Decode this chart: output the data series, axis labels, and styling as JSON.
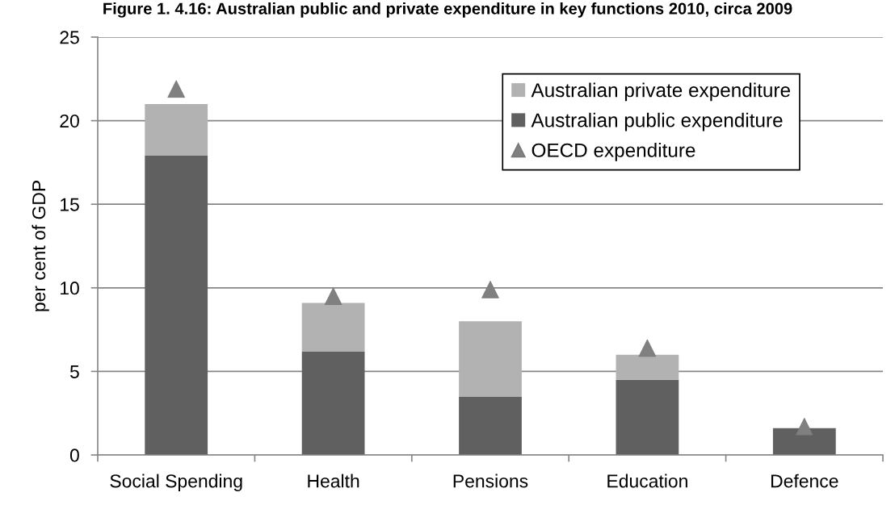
{
  "chart_data": {
    "type": "bar",
    "title": "Figure 1. 4.16: Australian public and private expenditure in key functions 2010, circa 2009",
    "ylabel": "per cent of GDP",
    "categories": [
      "Social Spending",
      "Health",
      "Pensions",
      "Education",
      "Defence"
    ],
    "stacked": true,
    "series": [
      {
        "name": "Australian public expenditure",
        "color": "#606060",
        "values": [
          17.9,
          6.2,
          3.5,
          4.5,
          1.6
        ]
      },
      {
        "name": "Australian private expenditure",
        "color": "#b2b2b2",
        "values": [
          3.1,
          2.9,
          4.5,
          1.5,
          null
        ]
      },
      {
        "name": "OECD expenditure",
        "type": "scatter",
        "color": "#808080",
        "marker": "triangle",
        "x": [
          "Social Spending",
          "Health",
          "Pensions",
          "Education",
          "Defence"
        ],
        "values": [
          21.9,
          9.5,
          9.9,
          6.4,
          1.7
        ]
      }
    ],
    "ylim": [
      0,
      25
    ],
    "yticks": [
      0,
      5,
      10,
      15,
      20,
      25
    ],
    "grid": "y",
    "legend": "top right"
  }
}
